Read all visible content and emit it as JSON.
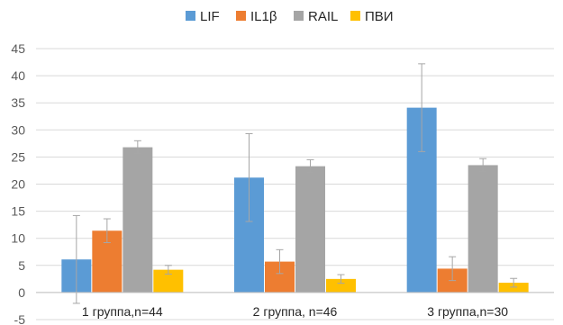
{
  "chart_data": {
    "type": "bar",
    "title": "",
    "xlabel": "",
    "ylabel": "",
    "categories": [
      "1 группа,n=44",
      "2 группа, n=46",
      "3 группа,n=30"
    ],
    "ylim": [
      -5,
      45
    ],
    "yticks": [
      -5,
      0,
      5,
      10,
      15,
      20,
      25,
      30,
      35,
      40,
      45
    ],
    "grid": true,
    "legend_position": "top",
    "series": [
      {
        "name": "LIF",
        "color": "#5B9BD5",
        "values": [
          6.1,
          21.2,
          34.1
        ],
        "errors": [
          8.1,
          8.1,
          8.1
        ]
      },
      {
        "name": "IL1β",
        "color": "#ED7D31",
        "values": [
          11.4,
          5.7,
          4.4
        ],
        "errors": [
          2.2,
          2.2,
          2.2
        ]
      },
      {
        "name": "RAIL",
        "color": "#A5A5A5",
        "values": [
          26.8,
          23.3,
          23.5
        ],
        "errors": [
          1.2,
          1.2,
          1.2
        ]
      },
      {
        "name": "ПВИ",
        "color": "#FFC000",
        "values": [
          4.2,
          2.5,
          1.8
        ],
        "errors": [
          0.8,
          0.8,
          0.8
        ]
      }
    ]
  }
}
